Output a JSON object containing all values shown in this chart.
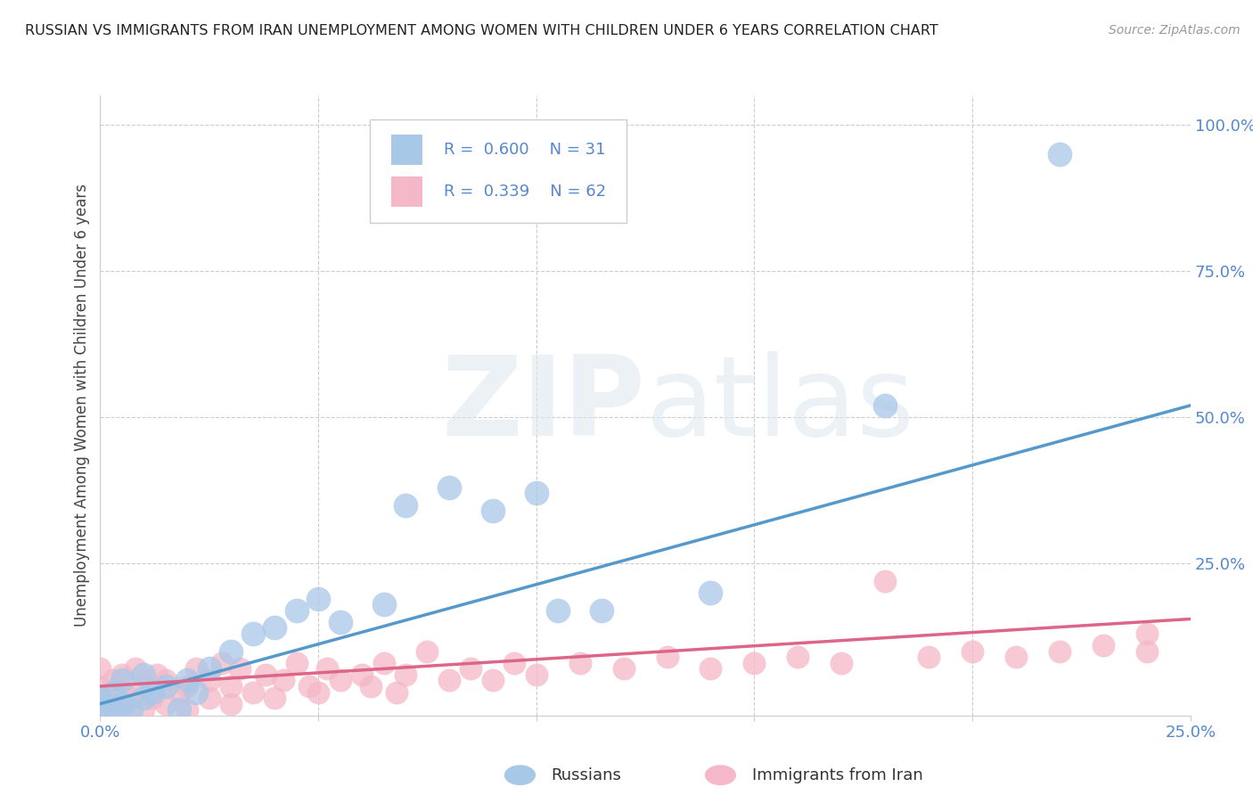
{
  "title": "RUSSIAN VS IMMIGRANTS FROM IRAN UNEMPLOYMENT AMONG WOMEN WITH CHILDREN UNDER 6 YEARS CORRELATION CHART",
  "source": "Source: ZipAtlas.com",
  "ylabel": "Unemployment Among Women with Children Under 6 years",
  "xlim": [
    0.0,
    0.25
  ],
  "ylim": [
    -0.01,
    1.05
  ],
  "russian_color": "#a8c8e8",
  "iran_color": "#f4b8c8",
  "russian_line_color": "#5599cc",
  "iran_line_color": "#dd6688",
  "watermark_zip": "ZIP",
  "watermark_atlas": "atlas",
  "background_color": "#ffffff",
  "tick_color": "#5588cc",
  "grid_color": "#cccccc",
  "russians_x": [
    0.0,
    0.0,
    0.002,
    0.003,
    0.005,
    0.005,
    0.007,
    0.01,
    0.01,
    0.012,
    0.015,
    0.018,
    0.02,
    0.022,
    0.025,
    0.03,
    0.035,
    0.04,
    0.045,
    0.05,
    0.055,
    0.065,
    0.07,
    0.08,
    0.09,
    0.1,
    0.105,
    0.115,
    0.14,
    0.18,
    0.22
  ],
  "russians_y": [
    0.0,
    0.02,
    0.0,
    0.03,
    0.01,
    0.05,
    0.0,
    0.02,
    0.06,
    0.03,
    0.04,
    0.0,
    0.05,
    0.03,
    0.07,
    0.1,
    0.13,
    0.14,
    0.17,
    0.19,
    0.15,
    0.18,
    0.35,
    0.38,
    0.34,
    0.37,
    0.17,
    0.17,
    0.2,
    0.52,
    0.95
  ],
  "iran_x": [
    0.0,
    0.0,
    0.0,
    0.0,
    0.002,
    0.003,
    0.005,
    0.005,
    0.005,
    0.007,
    0.008,
    0.01,
    0.01,
    0.012,
    0.013,
    0.015,
    0.015,
    0.018,
    0.02,
    0.02,
    0.022,
    0.025,
    0.025,
    0.028,
    0.03,
    0.03,
    0.032,
    0.035,
    0.038,
    0.04,
    0.042,
    0.045,
    0.048,
    0.05,
    0.052,
    0.055,
    0.06,
    0.062,
    0.065,
    0.068,
    0.07,
    0.075,
    0.08,
    0.085,
    0.09,
    0.095,
    0.1,
    0.11,
    0.12,
    0.13,
    0.14,
    0.15,
    0.16,
    0.17,
    0.18,
    0.19,
    0.2,
    0.21,
    0.22,
    0.23,
    0.24,
    0.24
  ],
  "iran_y": [
    0.0,
    0.02,
    0.04,
    0.07,
    0.01,
    0.05,
    0.0,
    0.03,
    0.06,
    0.02,
    0.07,
    0.0,
    0.04,
    0.02,
    0.06,
    0.01,
    0.05,
    0.03,
    0.0,
    0.04,
    0.07,
    0.02,
    0.05,
    0.08,
    0.01,
    0.04,
    0.07,
    0.03,
    0.06,
    0.02,
    0.05,
    0.08,
    0.04,
    0.03,
    0.07,
    0.05,
    0.06,
    0.04,
    0.08,
    0.03,
    0.06,
    0.1,
    0.05,
    0.07,
    0.05,
    0.08,
    0.06,
    0.08,
    0.07,
    0.09,
    0.07,
    0.08,
    0.09,
    0.08,
    0.22,
    0.09,
    0.1,
    0.09,
    0.1,
    0.11,
    0.1,
    0.13
  ],
  "russian_R": 0.6,
  "russian_N": 31,
  "iran_R": 0.339,
  "iran_N": 62,
  "rus_line_x0": 0.0,
  "rus_line_y0": 0.01,
  "rus_line_x1": 0.25,
  "rus_line_y1": 0.52,
  "iran_line_x0": 0.0,
  "iran_line_y0": 0.04,
  "iran_line_x1": 0.25,
  "iran_line_y1": 0.155
}
